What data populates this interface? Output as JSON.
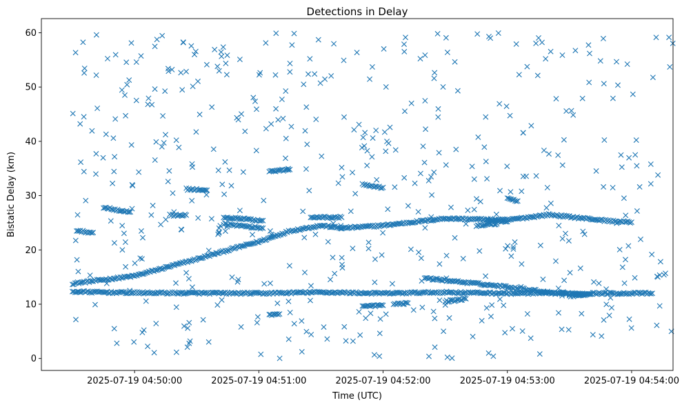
{
  "chart_data": {
    "type": "scatter",
    "title": "Detections in Delay",
    "xlabel": "Time (UTC)",
    "ylabel": "Bistatic Delay (km)",
    "x_range": [
      "2025-07-19 04:49:15",
      "2025-07-19 04:54:20"
    ],
    "ylim": [
      -2.2,
      62.6
    ],
    "x_ticks": [
      "2025-07-19 04:50:00",
      "2025-07-19 04:51:00",
      "2025-07-19 04:52:00",
      "2025-07-19 04:53:00",
      "2025-07-19 04:54:00"
    ],
    "y_ticks": [
      0,
      10,
      20,
      30,
      40,
      50,
      60
    ],
    "grid": false,
    "legend": "none",
    "marker": "x",
    "color": "#1f77b4",
    "x_start": "2025-07-19 04:49:30",
    "x_end": "2025-07-19 04:54:20",
    "tracks": [
      {
        "name": "rising-track",
        "points": [
          [
            "2025-07-19 04:49:30",
            13.8
          ],
          [
            "2025-07-19 04:50:00",
            15.2
          ],
          [
            "2025-07-19 04:50:30",
            18.3
          ],
          [
            "2025-07-19 04:50:50",
            20.5
          ],
          [
            "2025-07-19 04:51:00",
            21.5
          ],
          [
            "2025-07-19 04:51:15",
            23.5
          ],
          [
            "2025-07-19 04:51:30",
            24.5
          ],
          [
            "2025-07-19 04:51:40",
            24.0
          ]
        ]
      },
      {
        "name": "upper-track",
        "points": [
          [
            "2025-07-19 04:51:40",
            24.0
          ],
          [
            "2025-07-19 04:52:00",
            24.5
          ],
          [
            "2025-07-19 04:52:30",
            25.8
          ],
          [
            "2025-07-19 04:53:00",
            25.5
          ],
          [
            "2025-07-19 04:53:20",
            26.5
          ],
          [
            "2025-07-19 04:53:50",
            25.3
          ],
          [
            "2025-07-19 04:54:00",
            25.1
          ]
        ]
      },
      {
        "name": "flat-track",
        "points": [
          [
            "2025-07-19 04:49:30",
            12.3
          ],
          [
            "2025-07-19 04:50:00",
            12.1
          ],
          [
            "2025-07-19 04:51:00",
            12.0
          ],
          [
            "2025-07-19 04:51:30",
            12.2
          ],
          [
            "2025-07-19 04:52:00",
            12.0
          ],
          [
            "2025-07-19 04:52:30",
            12.2
          ],
          [
            "2025-07-19 04:53:00",
            12.0
          ],
          [
            "2025-07-19 04:53:30",
            12.0
          ],
          [
            "2025-07-19 04:54:10",
            12.0
          ]
        ]
      },
      {
        "name": "descending-track",
        "points": [
          [
            "2025-07-19 04:52:20",
            14.8
          ],
          [
            "2025-07-19 04:52:40",
            14.0
          ],
          [
            "2025-07-19 04:53:00",
            13.2
          ],
          [
            "2025-07-19 04:53:20",
            12.2
          ],
          [
            "2025-07-19 04:53:35",
            11.8
          ]
        ]
      },
      {
        "name": "band-23",
        "points": [
          [
            "2025-07-19 04:49:32",
            23.5
          ],
          [
            "2025-07-19 04:49:40",
            23.2
          ]
        ]
      },
      {
        "name": "band-24-7",
        "points": [
          [
            "2025-07-19 04:50:43",
            24.8
          ],
          [
            "2025-07-19 04:51:02",
            24.0
          ]
        ]
      },
      {
        "name": "band-26",
        "points": [
          [
            "2025-07-19 04:50:43",
            26.0
          ],
          [
            "2025-07-19 04:51:02",
            25.4
          ]
        ]
      },
      {
        "name": "band-27-5",
        "points": [
          [
            "2025-07-19 04:49:45",
            27.8
          ],
          [
            "2025-07-19 04:49:58",
            27.0
          ]
        ]
      },
      {
        "name": "band-31",
        "points": [
          [
            "2025-07-19 04:50:25",
            31.2
          ],
          [
            "2025-07-19 04:50:35",
            31.0
          ]
        ]
      },
      {
        "name": "band-26-4",
        "points": [
          [
            "2025-07-19 04:50:17",
            26.4
          ],
          [
            "2025-07-19 04:50:25",
            26.4
          ]
        ]
      },
      {
        "name": "band-26-mid",
        "points": [
          [
            "2025-07-19 04:51:25",
            26.0
          ],
          [
            "2025-07-19 04:51:40",
            26.0
          ]
        ]
      },
      {
        "name": "band-32",
        "points": [
          [
            "2025-07-19 04:51:50",
            32.0
          ],
          [
            "2025-07-19 04:52:00",
            31.5
          ]
        ]
      },
      {
        "name": "band-10",
        "points": [
          [
            "2025-07-19 04:51:50",
            9.6
          ],
          [
            "2025-07-19 04:52:00",
            9.8
          ]
        ]
      },
      {
        "name": "band-10-b",
        "points": [
          [
            "2025-07-19 04:52:05",
            10.0
          ],
          [
            "2025-07-19 04:52:12",
            10.2
          ]
        ]
      },
      {
        "name": "band-10-c",
        "points": [
          [
            "2025-07-19 04:52:30",
            10.5
          ],
          [
            "2025-07-19 04:52:40",
            11.0
          ]
        ]
      },
      {
        "name": "band-25-late",
        "points": [
          [
            "2025-07-19 04:52:50",
            25.5
          ],
          [
            "2025-07-19 04:53:00",
            25.2
          ]
        ]
      },
      {
        "name": "band-24-end",
        "points": [
          [
            "2025-07-19 04:52:45",
            24.5
          ],
          [
            "2025-07-19 04:52:55",
            24.8
          ]
        ]
      },
      {
        "name": "band-11-late",
        "points": [
          [
            "2025-07-19 04:53:30",
            11.5
          ],
          [
            "2025-07-19 04:53:40",
            11.8
          ]
        ]
      },
      {
        "name": "band-34",
        "points": [
          [
            "2025-07-19 04:51:05",
            34.5
          ],
          [
            "2025-07-19 04:51:15",
            34.8
          ]
        ]
      },
      {
        "name": "band-8",
        "points": [
          [
            "2025-07-19 04:51:05",
            8.0
          ],
          [
            "2025-07-19 04:51:10",
            8.2
          ]
        ]
      },
      {
        "name": "band-29",
        "points": [
          [
            "2025-07-19 04:53:00",
            29.5
          ],
          [
            "2025-07-19 04:53:05",
            29.0
          ]
        ]
      }
    ],
    "noise": {
      "count": 520,
      "y_range": [
        0,
        60
      ],
      "seed": 12345
    }
  }
}
